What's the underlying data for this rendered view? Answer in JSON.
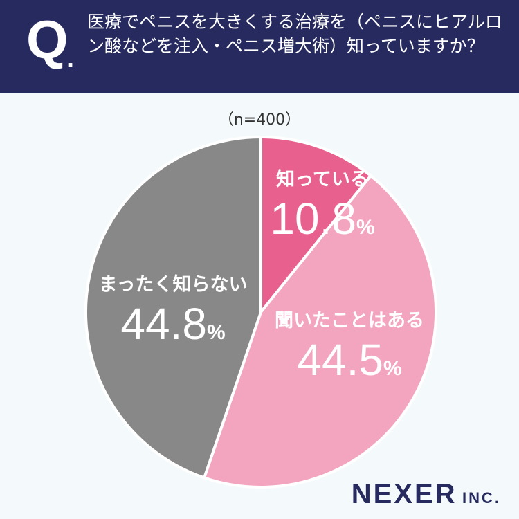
{
  "header": {
    "q_mark": "Q",
    "q_dot": ".",
    "question": "医療でペニスを大きくする治療を（ペニスにヒアルロン酸などを注入・ペニス増大術）知っていますか？"
  },
  "sample": "（n=400）",
  "chart_data": {
    "type": "pie",
    "start_angle_deg": 0,
    "direction": "clockwise",
    "slices": [
      {
        "label": "知っている",
        "value": 10.8,
        "display": "10.8",
        "unit": "%",
        "color": "#e8608e"
      },
      {
        "label": "聞いたことはある",
        "value": 44.5,
        "display": "44.5",
        "unit": "%",
        "color": "#f3a5c0"
      },
      {
        "label": "まったく知らない",
        "value": 44.8,
        "display": "44.8",
        "unit": "%",
        "color": "#888888"
      }
    ]
  },
  "logo": {
    "main": "NEXER",
    "suffix": "INC."
  }
}
